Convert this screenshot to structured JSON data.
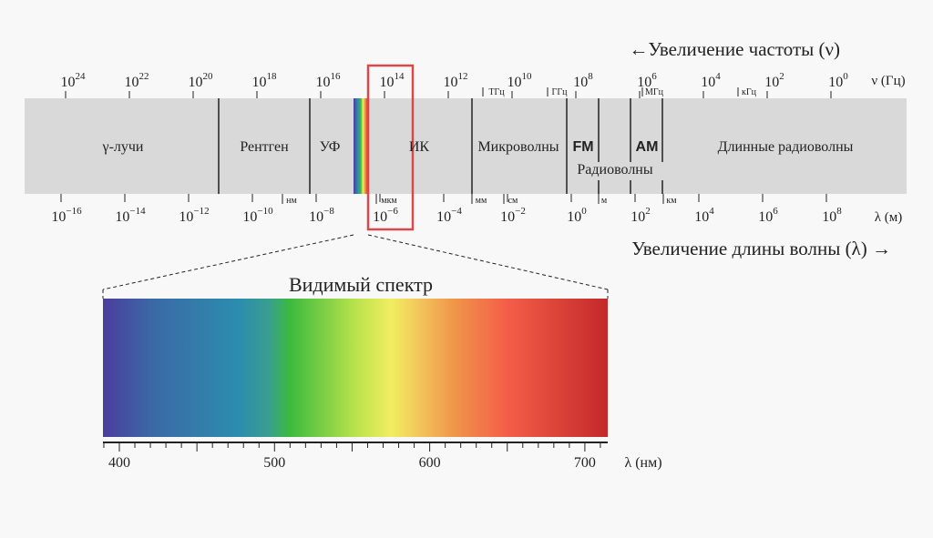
{
  "top_arrow": "←Увеличение частоты (ν)",
  "frequency_ticks": [
    {
      "base": "10",
      "exp": "24"
    },
    {
      "base": "10",
      "exp": "22"
    },
    {
      "base": "10",
      "exp": "20"
    },
    {
      "base": "10",
      "exp": "18"
    },
    {
      "base": "10",
      "exp": "16"
    },
    {
      "base": "10",
      "exp": "14"
    },
    {
      "base": "10",
      "exp": "12"
    },
    {
      "base": "10",
      "exp": "10"
    },
    {
      "base": "10",
      "exp": "8"
    },
    {
      "base": "10",
      "exp": "6"
    },
    {
      "base": "10",
      "exp": "4"
    },
    {
      "base": "10",
      "exp": "2"
    },
    {
      "base": "10",
      "exp": "0"
    }
  ],
  "frequency_unit": "ν (Гц)",
  "frequency_units": [
    "ТГц",
    "ГГц",
    "МГц",
    "кГц"
  ],
  "regions": [
    "γ-лучи",
    "Рентген",
    "УФ",
    "ИК",
    "Микроволны",
    "FM",
    "Радиоволны",
    "AM",
    "Длинные радиоволны"
  ],
  "wavelength_ticks": [
    {
      "base": "10",
      "exp": "−16"
    },
    {
      "base": "10",
      "exp": "−14"
    },
    {
      "base": "10",
      "exp": "−12"
    },
    {
      "base": "10",
      "exp": "−10"
    },
    {
      "base": "10",
      "exp": "−8"
    },
    {
      "base": "10",
      "exp": "−6"
    },
    {
      "base": "10",
      "exp": "−4"
    },
    {
      "base": "10",
      "exp": "−2"
    },
    {
      "base": "10",
      "exp": "0"
    },
    {
      "base": "10",
      "exp": "2"
    },
    {
      "base": "10",
      "exp": "4"
    },
    {
      "base": "10",
      "exp": "6"
    },
    {
      "base": "10",
      "exp": "8"
    }
  ],
  "wavelength_unit": "λ (м)",
  "wavelength_units": [
    "нм",
    "мкм",
    "мм",
    "см",
    "м",
    "км"
  ],
  "bottom_arrow": "Увеличение длины волны (λ) →",
  "visible": {
    "title": "Видимый спектр",
    "ticks": [
      "400",
      "500",
      "600",
      "700"
    ],
    "unit": "λ (нм)"
  }
}
